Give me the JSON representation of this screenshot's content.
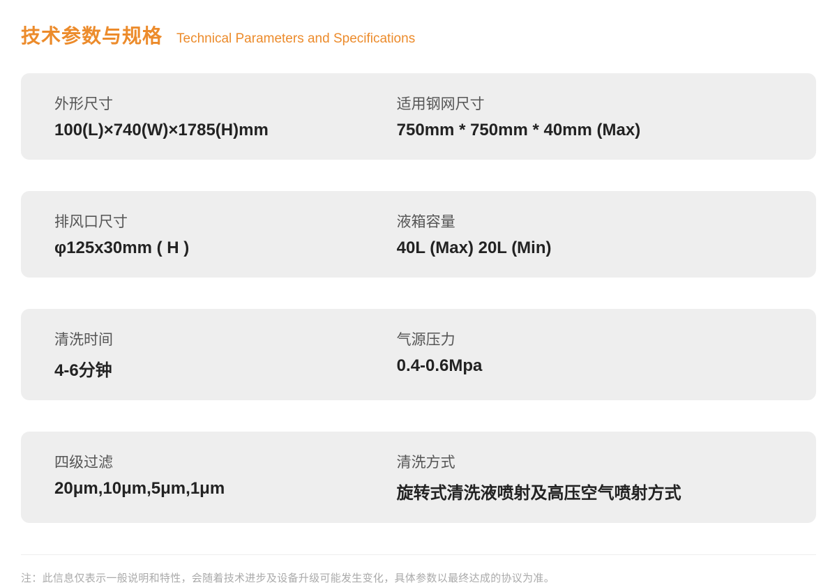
{
  "header": {
    "title_cn": "技术参数与规格",
    "title_en": "Technical Parameters and Specifications"
  },
  "colors": {
    "accent": "#ec8b2b",
    "card_bg": "#eeeeee",
    "label_text": "#555555",
    "value_text": "#222222",
    "footnote_text": "#aaaaaa",
    "divider": "#eeeeee",
    "page_bg": "#ffffff"
  },
  "typography": {
    "title_cn_fontsize": 28,
    "title_en_fontsize": 19,
    "label_fontsize": 21,
    "value_fontsize": 24,
    "footnote_fontsize": 15,
    "title_weight": 700,
    "value_weight": 700,
    "label_weight": 400
  },
  "layout": {
    "card_radius": 12,
    "card_gap": 45,
    "card_padding_v": 28,
    "card_padding_h": 48,
    "left_col_pct": 47
  },
  "specs": [
    {
      "left_label": "外形尺寸",
      "left_value": "100(L)×740(W)×1785(H)mm",
      "right_label": "适用钢网尺寸",
      "right_value": "750mm * 750mm * 40mm (Max)"
    },
    {
      "left_label": "排风口尺寸",
      "left_value": "φ125x30mm ( H )",
      "right_label": "液箱容量",
      "right_value": "40L (Max) 20L (Min)"
    },
    {
      "left_label": "清洗时间",
      "left_value": "4-6分钟",
      "right_label": "气源压力",
      "right_value": "0.4-0.6Mpa"
    },
    {
      "left_label": "四级过滤",
      "left_value": "20μm,10μm,5μm,1μm",
      "right_label": "清洗方式",
      "right_value": "旋转式清洗液喷射及高压空气喷射方式"
    }
  ],
  "footnote": "注：此信息仅表示一般说明和特性，会随着技术进步及设备升级可能发生变化，具体参数以最终达成的协议为准。"
}
